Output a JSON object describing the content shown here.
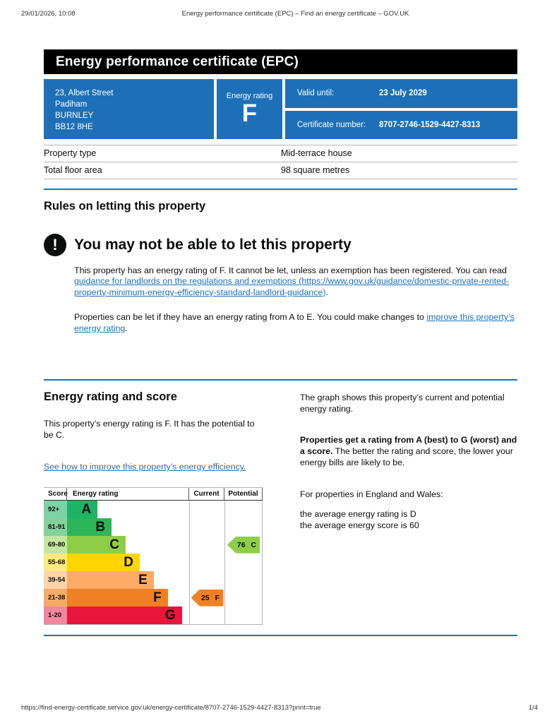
{
  "meta": {
    "datetime": "29/01/2026, 10:08",
    "doc_title": "Energy performance certificate (EPC) – Find an energy certificate – GOV.UK",
    "footer_url": "https://find-energy-certificate.service.gov.uk/energy-certificate/8707-2746-1529-4427-8313?print=true",
    "page_indicator": "1/4"
  },
  "banner": {
    "title": "Energy performance certificate (EPC)"
  },
  "summary": {
    "address_lines": [
      "23, Albert Street",
      "Padiham",
      "BURNLEY",
      "BB12 8HE"
    ],
    "energy_rating_label": "Energy rating",
    "energy_rating_value": "F",
    "valid_until_label": "Valid until:",
    "valid_until_value": "23 July 2029",
    "certificate_number_label": "Certificate number:",
    "certificate_number_value": "8707-2746-1529-4427-8313"
  },
  "property_table": {
    "rows": [
      {
        "label": "Property type",
        "value": "Mid-terrace house"
      },
      {
        "label": "Total floor area",
        "value": "98 square metres"
      }
    ]
  },
  "rules_section": {
    "heading": "Rules on letting this property",
    "warning_icon_glyph": "!",
    "warning_heading": "You may not be able to let this property",
    "para1_before": "This property has an energy rating of F. It cannot be let, unless an exemption has been registered. You can read ",
    "para1_link": "guidance for landlords on the regulations and exemptions (https://www.gov.uk/guidance/domestic-private-rented-property-minimum-energy-efficiency-standard-landlord-guidance)",
    "para1_after": ".",
    "para2_before": "Properties can be let if they have an energy rating from A to E. You could make changes to ",
    "para2_link": "improve this property’s energy rating",
    "para2_after": "."
  },
  "rating_section": {
    "heading": "Energy rating and score",
    "intro": "This property’s energy rating is F. It has the potential to be C.",
    "improve_link": "See how to improve this property’s energy efficiency.",
    "right_para1": "The graph shows this property’s current and potential energy rating.",
    "right_para2_bold": "Properties get a rating from A (best) to G (worst) and a score.",
    "right_para2_rest": " The better the rating and score, the lower your energy bills are likely to be.",
    "right_para3": "For properties in England and Wales:",
    "right_line1": "the average energy rating is D",
    "right_line2": "the average energy score is 60"
  },
  "chart_data": {
    "type": "bar",
    "title": "Energy rating and score chart",
    "columns": [
      "Score",
      "Energy rating",
      "Current",
      "Potential"
    ],
    "bands": [
      {
        "score_range": "92+",
        "letter": "A",
        "color": "#1db465",
        "tint": "#7ed0a7",
        "width_pct": 25
      },
      {
        "score_range": "81-91",
        "letter": "B",
        "color": "#2eb558",
        "tint": "#84d19c",
        "width_pct": 36.5
      },
      {
        "score_range": "69-80",
        "letter": "C",
        "color": "#8dce46",
        "tint": "#c5e6a2",
        "width_pct": 48
      },
      {
        "score_range": "55-68",
        "letter": "D",
        "color": "#ffd500",
        "tint": "#ffea7e",
        "width_pct": 59.5
      },
      {
        "score_range": "39-54",
        "letter": "E",
        "color": "#fcaa65",
        "tint": "#fdd3a9",
        "width_pct": 71
      },
      {
        "score_range": "21-38",
        "letter": "F",
        "color": "#ef8023",
        "tint": "#f5ab66",
        "width_pct": 82.5
      },
      {
        "score_range": "1-20",
        "letter": "G",
        "color": "#e9153b",
        "tint": "#f2879f",
        "width_pct": 94
      }
    ],
    "current": {
      "score": 25,
      "letter": "F",
      "color": "#ef8023"
    },
    "potential": {
      "score": 76,
      "letter": "C",
      "color": "#8dce46"
    }
  }
}
